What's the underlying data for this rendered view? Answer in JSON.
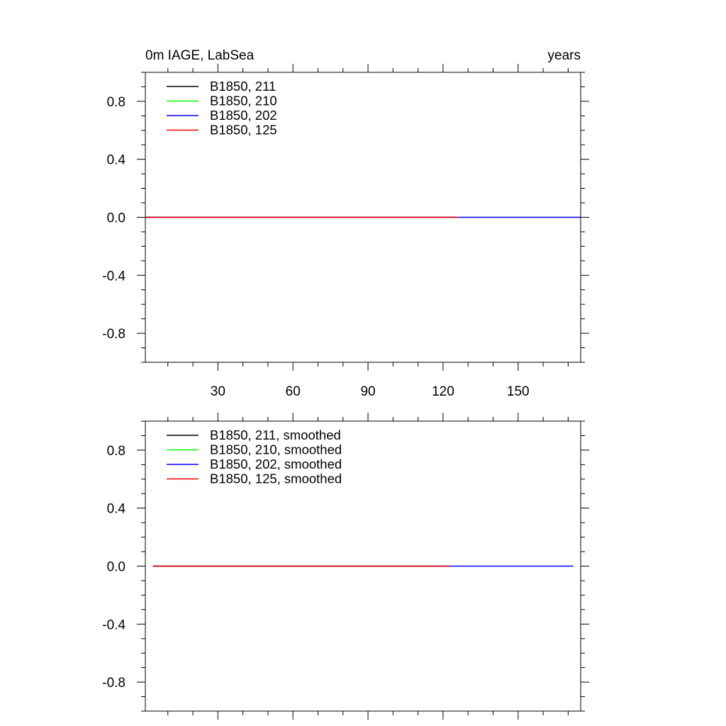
{
  "chart_data": [
    {
      "type": "line",
      "title_left": "0m IAGE, LabSea",
      "title_right": "years",
      "xlabel": "",
      "ylabel": "",
      "xlim": [
        1,
        175
      ],
      "ylim": [
        -1,
        1
      ],
      "x_ticks": [
        30,
        60,
        90,
        120,
        150
      ],
      "x_tick_labels": [
        "30",
        "60",
        "90",
        "120",
        "150"
      ],
      "y_ticks": [
        0.8,
        0.4,
        0.0,
        -0.4,
        -0.8
      ],
      "y_tick_labels": [
        "0.8",
        "0.4",
        "0.0",
        "-0.4",
        "-0.8"
      ],
      "legend_position": "top-left",
      "series": [
        {
          "name": "B1850, 211",
          "color": "#000000",
          "x": [
            1,
            125
          ],
          "y": [
            0,
            0
          ]
        },
        {
          "name": "B1850, 210",
          "color": "#00ff00",
          "x": [
            1,
            125
          ],
          "y": [
            0,
            0
          ]
        },
        {
          "name": "B1850, 202",
          "color": "#0000ff",
          "x": [
            1,
            175
          ],
          "y": [
            0,
            0
          ]
        },
        {
          "name": "B1850, 125",
          "color": "#ff0000",
          "x": [
            1,
            126
          ],
          "y": [
            0,
            0
          ]
        }
      ]
    },
    {
      "type": "line",
      "title_left": "",
      "title_right": "",
      "xlabel": "",
      "ylabel": "",
      "xlim": [
        1,
        175
      ],
      "ylim": [
        -1,
        1
      ],
      "x_ticks": [
        30,
        60,
        90,
        120,
        150
      ],
      "x_tick_labels": [],
      "y_ticks": [
        0.8,
        0.4,
        0.0,
        -0.4,
        -0.8
      ],
      "y_tick_labels": [
        "0.8",
        "0.4",
        "0.0",
        "-0.4",
        "-0.8"
      ],
      "legend_position": "top-left",
      "series": [
        {
          "name": "B1850, 211, smoothed",
          "color": "#000000",
          "x": [
            4,
            122
          ],
          "y": [
            0,
            0
          ]
        },
        {
          "name": "B1850, 210, smoothed",
          "color": "#00ff00",
          "x": [
            4,
            122
          ],
          "y": [
            0,
            0
          ]
        },
        {
          "name": "B1850, 202, smoothed",
          "color": "#0000ff",
          "x": [
            4,
            172
          ],
          "y": [
            0,
            0
          ]
        },
        {
          "name": "B1850, 125, smoothed",
          "color": "#ff0000",
          "x": [
            4,
            123
          ],
          "y": [
            0,
            0
          ]
        }
      ]
    }
  ]
}
